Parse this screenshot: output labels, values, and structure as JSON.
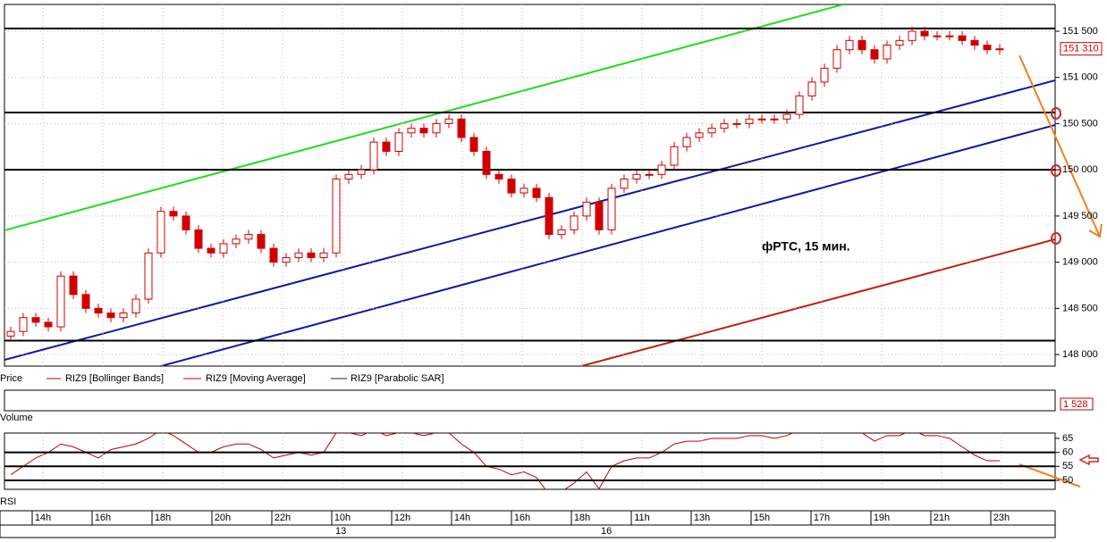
{
  "chart_data": {
    "type": "candlestick",
    "title": "фРТС,  15 мин.",
    "legend": [
      "Price",
      "RIZ9 [Bollinger Bands]",
      "RIZ9 [Moving Average]",
      "RIZ9 [Parabolic SAR]"
    ],
    "volume_title": "Volume",
    "volume_last": "1 528",
    "rsi_title": "RSI",
    "open": [
      148200,
      148250,
      148400,
      148350,
      148300,
      148850,
      148650,
      148500,
      148450,
      148400,
      148450,
      148600,
      149100,
      149550,
      149500,
      149350,
      149150,
      149100,
      149200,
      149250,
      149300,
      149150,
      149000,
      149050,
      149100,
      149050,
      149100,
      149900,
      149950,
      150000,
      150300,
      150200,
      150400,
      150450,
      150400,
      150500,
      150550,
      150350,
      150200,
      149950,
      149900,
      149750,
      149800,
      149700,
      149300,
      149350,
      149500,
      149650,
      149350,
      149800,
      149900,
      149950,
      149950,
      150050,
      150250,
      150350,
      150400,
      150450,
      150500,
      150500,
      150550,
      150550,
      150550,
      150600,
      150800,
      150950,
      151100,
      151300,
      151400,
      151300,
      151200,
      151350,
      151400,
      151500,
      151450,
      151450,
      151450,
      151400,
      151350,
      151300
    ],
    "high": [
      148300,
      148450,
      148450,
      148400,
      148900,
      148900,
      148700,
      148550,
      148500,
      148500,
      148650,
      149150,
      149600,
      149600,
      149550,
      149400,
      149200,
      149250,
      149300,
      149350,
      149350,
      149200,
      149100,
      149150,
      149150,
      149150,
      149950,
      150000,
      150050,
      150350,
      150350,
      150450,
      150500,
      150500,
      150550,
      150600,
      150600,
      150400,
      150250,
      150000,
      149950,
      149850,
      149850,
      149750,
      149400,
      149550,
      149700,
      149700,
      149850,
      149950,
      150000,
      150000,
      150100,
      150300,
      150400,
      150450,
      150500,
      150550,
      150550,
      150600,
      150600,
      150600,
      150650,
      150850,
      151000,
      151150,
      151350,
      151450,
      151450,
      151350,
      151400,
      151450,
      151550,
      151550,
      151500,
      151500,
      151500,
      151450,
      151400,
      151360
    ],
    "low": [
      148150,
      148200,
      148300,
      148250,
      148250,
      148600,
      148450,
      148400,
      148350,
      148350,
      148400,
      148550,
      149050,
      149450,
      149300,
      149100,
      149050,
      149050,
      149150,
      149200,
      149100,
      148950,
      148950,
      149000,
      149000,
      149000,
      149050,
      149850,
      149900,
      149950,
      150150,
      150150,
      150350,
      150350,
      150350,
      150450,
      150300,
      150150,
      149900,
      149850,
      149700,
      149700,
      149650,
      149250,
      149250,
      149300,
      149450,
      149300,
      149300,
      149750,
      149850,
      149900,
      149900,
      150000,
      150200,
      150300,
      150350,
      150400,
      150450,
      150450,
      150500,
      150500,
      150500,
      150550,
      150750,
      150900,
      151050,
      151250,
      151250,
      151150,
      151150,
      151300,
      151350,
      151400,
      151400,
      151400,
      151350,
      151300,
      151250,
      151250
    ],
    "close": [
      148250,
      148400,
      148350,
      148300,
      148850,
      148650,
      148500,
      148450,
      148400,
      148450,
      148600,
      149100,
      149550,
      149500,
      149350,
      149150,
      149100,
      149200,
      149250,
      149300,
      149150,
      149000,
      149050,
      149100,
      149050,
      149100,
      149900,
      149950,
      150000,
      150300,
      150200,
      150400,
      150450,
      150400,
      150500,
      150550,
      150350,
      150200,
      149950,
      149900,
      149750,
      149800,
      149700,
      149300,
      149350,
      149500,
      149650,
      149350,
      149800,
      149900,
      149950,
      149950,
      150050,
      150250,
      150350,
      150400,
      150450,
      150500,
      150500,
      150550,
      150550,
      150550,
      150600,
      150800,
      150950,
      151100,
      151300,
      151400,
      151300,
      151200,
      151350,
      151400,
      151500,
      151450,
      151450,
      151450,
      151400,
      151350,
      151300,
      151310
    ],
    "last_price": {
      "value": 151310,
      "label": "151 310"
    },
    "color": "#d00000",
    "ylim": [
      147875,
      151790
    ],
    "yticks": [
      {
        "value": 148000,
        "label": "148 000"
      },
      {
        "value": 148500,
        "label": "148 500"
      },
      {
        "value": 149000,
        "label": "149 000"
      },
      {
        "value": 149500,
        "label": "149 500"
      },
      {
        "value": 150000,
        "label": "150 000"
      },
      {
        "value": 150500,
        "label": "150 500"
      },
      {
        "value": 151000,
        "label": "151 000"
      },
      {
        "value": 151500,
        "label": "151 500"
      }
    ],
    "levels": [
      151530,
      150620,
      150000,
      148150
    ],
    "rsi": [
      52,
      55,
      58,
      60,
      63,
      62,
      60,
      58,
      61,
      62,
      63,
      65,
      68,
      66,
      63,
      60,
      60,
      62,
      63,
      63,
      61,
      58,
      59,
      60,
      59,
      60,
      67,
      67,
      66,
      68,
      66,
      67,
      67,
      66,
      67,
      67,
      63,
      60,
      55,
      54,
      52,
      53,
      51,
      45,
      46,
      49,
      53,
      47,
      55,
      57,
      58,
      58,
      60,
      63,
      64,
      64,
      65,
      65,
      65,
      66,
      66,
      65,
      66,
      68,
      69,
      70,
      71,
      71,
      67,
      64,
      66,
      66,
      68,
      66,
      66,
      65,
      62,
      59,
      57,
      57
    ],
    "rsi_ylim": [
      46.8,
      66.9
    ],
    "rsi_yticks": [
      65,
      60,
      55,
      50
    ],
    "rsi_levels": [
      60,
      55,
      50
    ],
    "time_labels": [
      "14h",
      "16h",
      "18h",
      "20h",
      "22h",
      "10h",
      "12h",
      "14h",
      "16h",
      "18h",
      "11h",
      "13h",
      "15h",
      "17h",
      "19h",
      "21h",
      "23h"
    ],
    "dates": [
      "13",
      "16"
    ],
    "grid": true
  }
}
